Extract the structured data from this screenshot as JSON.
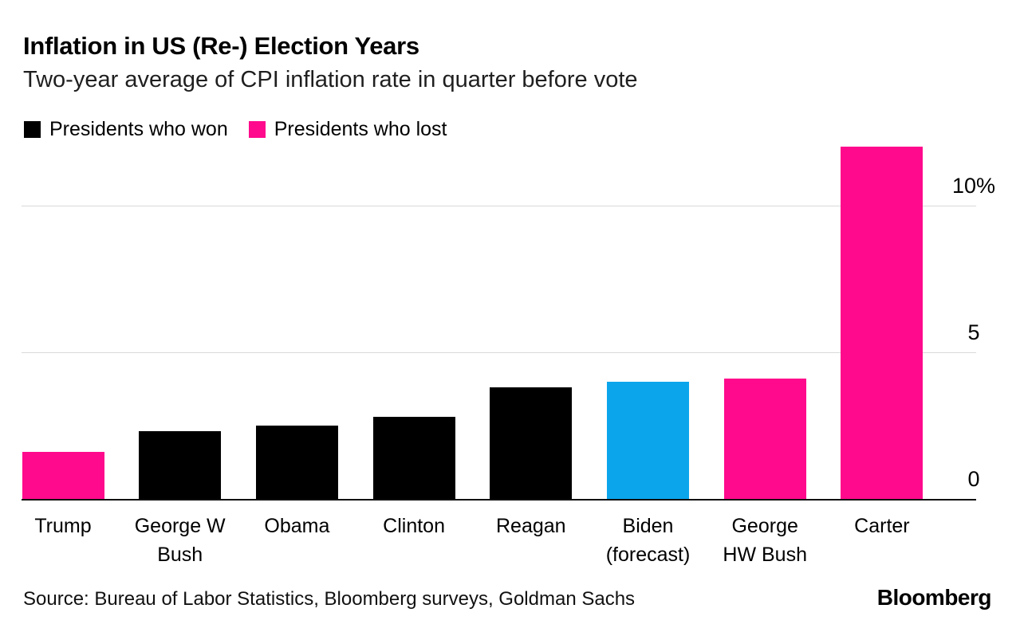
{
  "header": {
    "title": "Inflation in US (Re-) Election Years",
    "subtitle": "Two-year average of CPI inflation rate in quarter before vote"
  },
  "legend": {
    "won_label": "Presidents who won",
    "lost_label": "Presidents who lost"
  },
  "footer": {
    "source": "Source: Bureau of Labor Statistics, Bloomberg surveys, Goldman Sachs",
    "logo": "Bloomberg"
  },
  "chart_data": {
    "type": "bar",
    "title": "Inflation in US (Re-) Election Years",
    "subtitle": "Two-year average of CPI inflation rate in quarter before vote",
    "unit": "percent",
    "ylim": [
      0,
      12.3
    ],
    "yticks": [
      {
        "value": 0,
        "label": "0"
      },
      {
        "value": 5,
        "label": "5"
      },
      {
        "value": 10,
        "label": "10%"
      }
    ],
    "grid": "horizontal-light-gray",
    "legend_position": "top-left",
    "ytick_labels_position": "right",
    "colors": {
      "won": "#000000",
      "lost": "#ff0a8c",
      "forecast": "#0ba5ec"
    },
    "categories": [
      "Trump",
      "George W Bush",
      "Obama",
      "Clinton",
      "Reagan",
      "Biden (forecast)",
      "George HW Bush",
      "Carter"
    ],
    "bars": [
      {
        "category": "Trump",
        "label_lines": "Trump",
        "value": 1.6,
        "group": "lost"
      },
      {
        "category": "George W Bush",
        "label_lines": "George W\nBush",
        "value": 2.3,
        "group": "won"
      },
      {
        "category": "Obama",
        "label_lines": "Obama",
        "value": 2.5,
        "group": "won"
      },
      {
        "category": "Clinton",
        "label_lines": "Clinton",
        "value": 2.8,
        "group": "won"
      },
      {
        "category": "Reagan",
        "label_lines": "Reagan",
        "value": 3.8,
        "group": "won"
      },
      {
        "category": "Biden (forecast)",
        "label_lines": "Biden\n(forecast)",
        "value": 4.0,
        "group": "forecast"
      },
      {
        "category": "George HW Bush",
        "label_lines": "George\nHW Bush",
        "value": 4.1,
        "group": "lost"
      },
      {
        "category": "Carter",
        "label_lines": "Carter",
        "value": 12.0,
        "group": "lost"
      }
    ]
  }
}
